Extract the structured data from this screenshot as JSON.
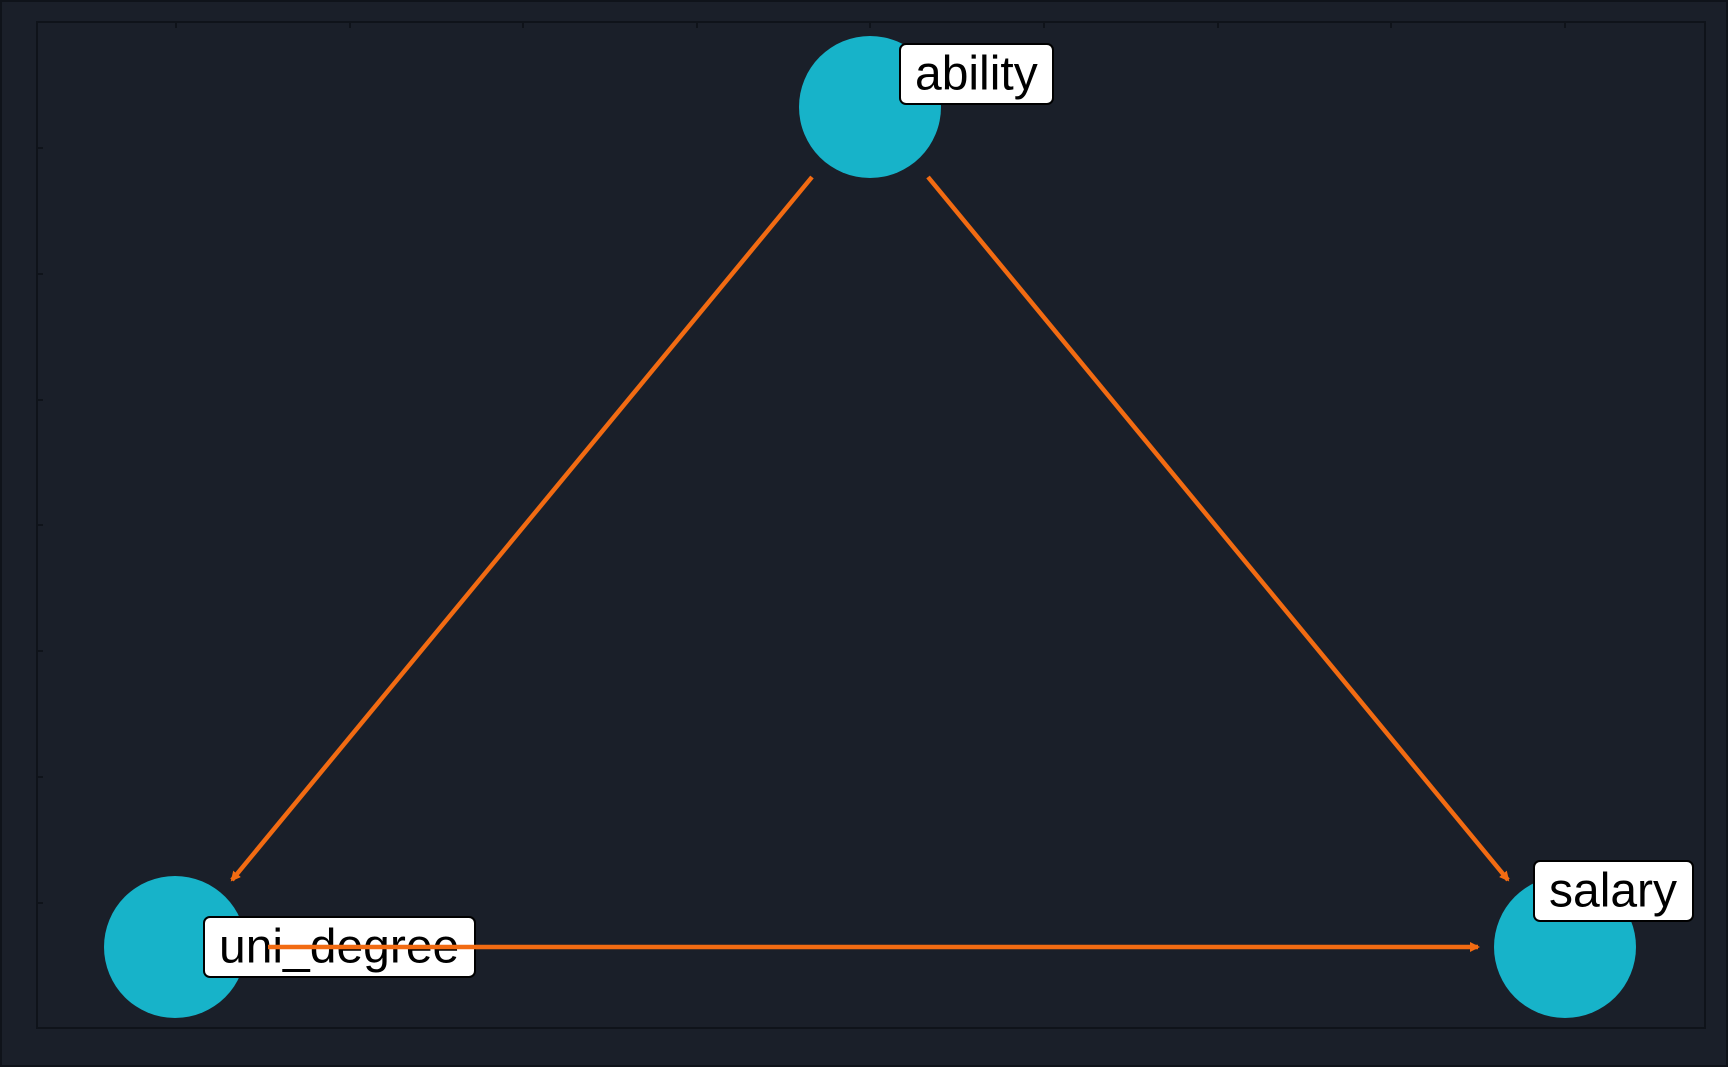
{
  "diagram": {
    "type": "directed-acyclic-graph",
    "colors": {
      "background": "#1a1f29",
      "outer_border": "#0f131a",
      "node_fill": "#17b3c9",
      "edge_color": "#f26b12",
      "label_fill": "#ffffff",
      "label_text": "#000000"
    },
    "nodes": [
      {
        "id": "ability",
        "label": "ability"
      },
      {
        "id": "uni_degree",
        "label": "uni_degree"
      },
      {
        "id": "salary",
        "label": "salary"
      }
    ],
    "edges": [
      {
        "from": "ability",
        "to": "uni_degree"
      },
      {
        "from": "ability",
        "to": "salary"
      },
      {
        "from": "uni_degree",
        "to": "salary"
      }
    ]
  }
}
